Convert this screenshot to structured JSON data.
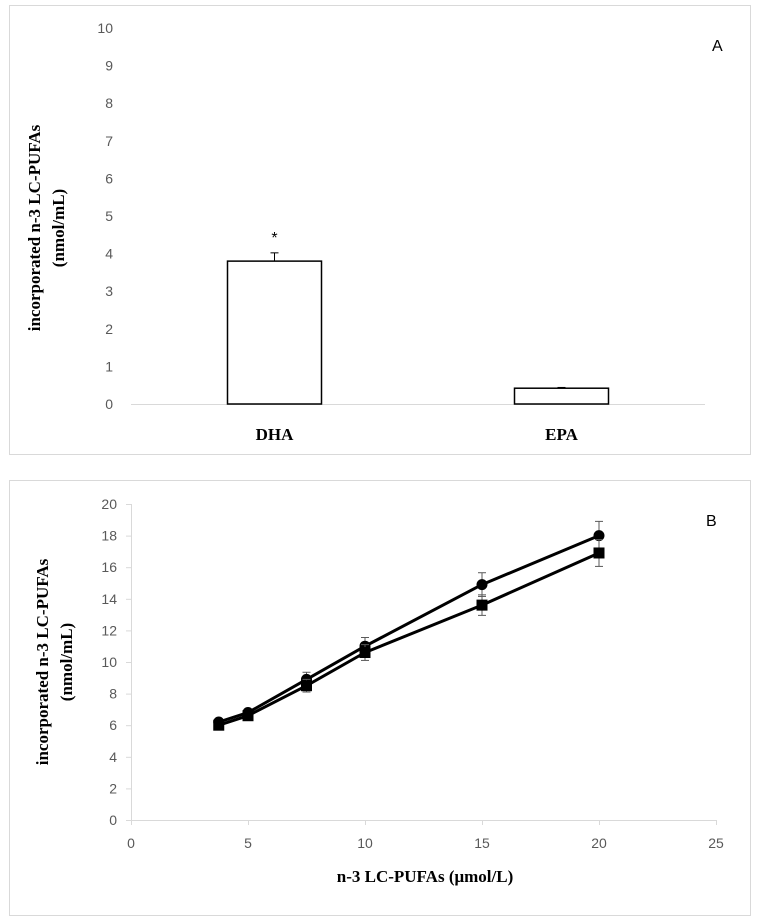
{
  "chart_data": [
    {
      "type": "bar",
      "panel_label": "A",
      "categories": [
        "DHA",
        "EPA"
      ],
      "values": [
        3.8,
        0.42
      ],
      "errors": [
        0.22,
        0.02
      ],
      "annotations": [
        "*",
        ""
      ],
      "ylabel_line1": "incorporated n-3 LC-PUFAs",
      "ylabel_line2": "(nmol/mL)",
      "ylim": [
        0,
        10
      ],
      "yticks": [
        "0",
        "1",
        "2",
        "3",
        "4",
        "5",
        "6",
        "7",
        "8",
        "9",
        "10"
      ],
      "colors": {
        "bar_fill": "#ffffff",
        "bar_stroke": "#000000",
        "axis": "#d9d9d9",
        "tick": "#595959"
      }
    },
    {
      "type": "line",
      "panel_label": "B",
      "series": [
        {
          "name": "circle",
          "marker": "circle",
          "x": [
            3.75,
            5,
            7.5,
            10,
            15,
            20
          ],
          "y": [
            6.2,
            6.8,
            8.9,
            11.0,
            14.9,
            18.0
          ],
          "err": [
            0.15,
            0.2,
            0.45,
            0.55,
            0.75,
            0.9
          ]
        },
        {
          "name": "square",
          "marker": "square",
          "x": [
            3.75,
            5,
            7.5,
            10,
            15,
            20
          ],
          "y": [
            6.0,
            6.6,
            8.5,
            10.6,
            13.6,
            16.9
          ],
          "err": [
            0.1,
            0.15,
            0.4,
            0.5,
            0.65,
            0.85
          ]
        }
      ],
      "xlabel": "n-3 LC-PUFAs (μmol/L)",
      "ylabel_line1": "incorporated n-3 LC-PUFAs",
      "ylabel_line2": "(nmol/mL)",
      "xlim": [
        0,
        25
      ],
      "ylim": [
        0,
        20
      ],
      "xticks": [
        "0",
        "5",
        "10",
        "15",
        "20",
        "25"
      ],
      "yticks": [
        "0",
        "2",
        "4",
        "6",
        "8",
        "10",
        "12",
        "14",
        "16",
        "18",
        "20"
      ],
      "colors": {
        "line": "#000000",
        "axis": "#d9d9d9",
        "tick": "#595959"
      }
    }
  ]
}
